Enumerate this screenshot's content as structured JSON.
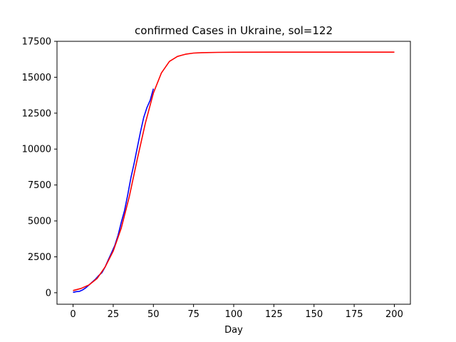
{
  "chart_data": {
    "type": "line",
    "title": "confirmed Cases in Ukraine, sol=122",
    "xlabel": "Day",
    "ylabel": "",
    "xlim": [
      -10,
      210
    ],
    "ylim": [
      -800,
      17500
    ],
    "x_ticks": [
      0,
      25,
      50,
      75,
      100,
      125,
      150,
      175,
      200
    ],
    "y_ticks": [
      0,
      2500,
      5000,
      7500,
      10000,
      12500,
      15000,
      17500
    ],
    "grid": false,
    "series": [
      {
        "color": "#0000ff",
        "x": [
          0,
          2,
          4,
          6,
          8,
          10,
          12,
          14,
          16,
          18,
          20,
          22,
          24,
          26,
          28,
          30,
          32,
          34,
          36,
          38,
          40,
          42,
          44,
          46,
          48,
          50
        ],
        "y": [
          30,
          80,
          100,
          200,
          350,
          550,
          750,
          950,
          1200,
          1400,
          1800,
          2300,
          2800,
          3300,
          4000,
          4900,
          5700,
          6800,
          8000,
          9000,
          10100,
          11200,
          12200,
          12900,
          13400,
          14200
        ]
      },
      {
        "color": "#ff0000",
        "x": [
          0,
          5,
          10,
          15,
          20,
          25,
          30,
          35,
          40,
          45,
          50,
          55,
          60,
          65,
          70,
          75,
          80,
          90,
          100,
          125,
          150,
          175,
          200
        ],
        "y": [
          150,
          300,
          550,
          1000,
          1800,
          2900,
          4500,
          6700,
          9300,
          11800,
          13900,
          15300,
          16100,
          16450,
          16600,
          16680,
          16710,
          16730,
          16740,
          16745,
          16745,
          16745,
          16745
        ]
      }
    ]
  }
}
